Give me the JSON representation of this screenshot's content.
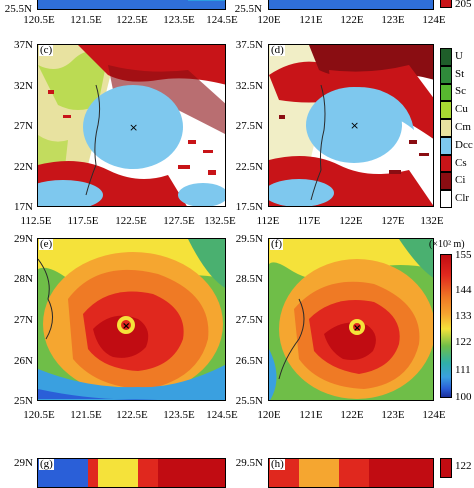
{
  "panels": {
    "a": {
      "x": [
        "120.5E",
        "121.5E",
        "122.5E",
        "123.5E",
        "124.5E"
      ],
      "y": [
        "25.5N"
      ]
    },
    "b": {
      "x": [
        "120E",
        "121E",
        "122E",
        "123E",
        "124E"
      ],
      "y": [
        "25.5N"
      ],
      "cbar_value": "205"
    },
    "c": {
      "tag": "(c)",
      "y": [
        "37N",
        "32N",
        "27N",
        "22N",
        "17N"
      ],
      "x": [
        "112.5E",
        "117.5E",
        "122.5E",
        "127.5E",
        "132.5E"
      ]
    },
    "d": {
      "tag": "(d)",
      "y": [
        "37.5N",
        "32.5N",
        "27.5N",
        "22.5N",
        "17.5N"
      ],
      "x": [
        "112E",
        "117E",
        "122E",
        "127E",
        "132E"
      ]
    },
    "e": {
      "tag": "(e)",
      "y": [
        "29N",
        "28N",
        "27N",
        "26N",
        "25N"
      ],
      "x": [
        "120.5E",
        "121.5E",
        "122.5E",
        "123.5E",
        "124.5E"
      ]
    },
    "f": {
      "tag": "(f)",
      "y": [
        "29.5N",
        "28.5N",
        "27.5N",
        "26.5N",
        "25.5N"
      ],
      "x": [
        "120E",
        "121E",
        "122E",
        "123E",
        "124E"
      ]
    },
    "g": {
      "tag": "(g)",
      "y": [
        "29N"
      ]
    },
    "h": {
      "tag": "(h)",
      "y": [
        "29.5N"
      ],
      "cbar_value": "122"
    }
  },
  "cloud_legend": {
    "classes": [
      {
        "label": "U",
        "color": "#1f5e2a"
      },
      {
        "label": "St",
        "color": "#2f8a3a"
      },
      {
        "label": "Sc",
        "color": "#57b82f"
      },
      {
        "label": "Cu",
        "color": "#a8d832"
      },
      {
        "label": "Cm",
        "color": "#e8e2a0"
      },
      {
        "label": "Dcc",
        "color": "#7ec8ee"
      },
      {
        "label": "Cs",
        "color": "#c81418"
      },
      {
        "label": "Ci",
        "color": "#8a0d12"
      },
      {
        "label": "Clr",
        "color": "#ffffff"
      }
    ]
  },
  "height_colorbar": {
    "unit": "(×10² m)",
    "ticks": [
      "155",
      "144",
      "133",
      "122",
      "111",
      "100"
    ]
  },
  "storm_marker": "×"
}
